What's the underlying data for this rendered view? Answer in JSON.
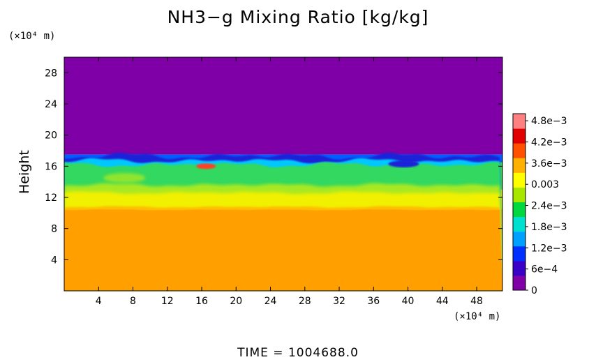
{
  "chart_data": {
    "type": "heatmap",
    "title": "NH3−g Mixing Ratio [kg/kg]",
    "ylabel": "Height",
    "xlabel": "",
    "x_unit": "(×10⁴ m)",
    "y_unit": "(×10⁴ m)",
    "xlim": [
      0,
      51
    ],
    "ylim": [
      0,
      30
    ],
    "x_ticks": [
      "4",
      "8",
      "12",
      "16",
      "20",
      "24",
      "28",
      "32",
      "36",
      "40",
      "44",
      "48"
    ],
    "x_tick_values": [
      4,
      8,
      12,
      16,
      20,
      24,
      28,
      32,
      36,
      40,
      44,
      48
    ],
    "y_ticks": [
      "4",
      "8",
      "12",
      "16",
      "20",
      "24",
      "28"
    ],
    "y_tick_values": [
      4,
      8,
      12,
      16,
      20,
      24,
      28
    ],
    "colorbar": {
      "range": [
        0,
        0.005
      ],
      "tick_labels": [
        "0",
        "6e−4",
        "1.2e−3",
        "1.8e−3",
        "2.4e−3",
        "0.003",
        "3.6e−3",
        "4.2e−3",
        "4.8e−3"
      ],
      "tick_values": [
        0,
        0.0006,
        0.0012,
        0.0018,
        0.0024,
        0.003,
        0.0036,
        0.0042,
        0.0048
      ],
      "colors": [
        "#8000a8",
        "#3a00c8",
        "#0030ff",
        "#00a0ff",
        "#00e0d0",
        "#00d840",
        "#a8e800",
        "#ffff00",
        "#ffb000",
        "#ff5000",
        "#e00000",
        "#ff8080"
      ]
    },
    "regions": [
      {
        "y_range": [
          17.5,
          30
        ],
        "value": 0.0,
        "color": "#8000a8"
      },
      {
        "y_range": [
          15.5,
          17.5
        ],
        "value": 0.0009,
        "color": "#0060ff"
      },
      {
        "y_range": [
          13,
          16.5
        ],
        "value": 0.0027,
        "color": "#40d840"
      },
      {
        "y_range": [
          10.5,
          13
        ],
        "value": 0.0036,
        "color": "#e8f000"
      },
      {
        "y_range": [
          0,
          10.5
        ],
        "value": 0.004,
        "color": "#ffa000"
      }
    ],
    "grid": false
  },
  "footer": {
    "time_text": "TIME  =  1004688.0"
  }
}
